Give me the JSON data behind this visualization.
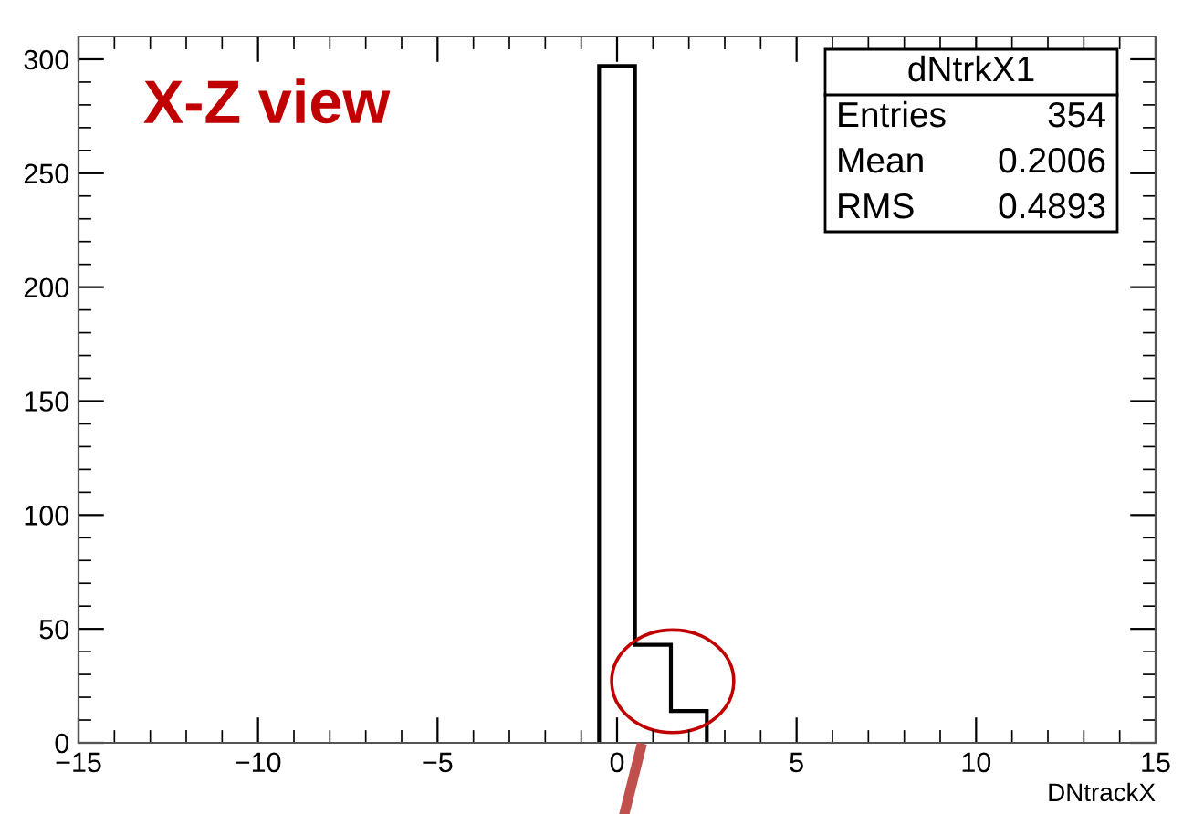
{
  "chart_data": {
    "type": "histogram",
    "xlabel": "DNtrackX",
    "bins": [
      -0.5,
      0.5,
      1.5,
      2.5
    ],
    "values": [
      297,
      43,
      14
    ],
    "color": "#000000",
    "xlim": [
      -15,
      15
    ],
    "xticks": [
      {
        "value": -15,
        "label": "−15"
      },
      {
        "value": -10,
        "label": "−10"
      },
      {
        "value": -5,
        "label": "−5"
      },
      0,
      5,
      10,
      15
    ],
    "ylim": [
      0,
      310
    ],
    "yticks": [
      0,
      50,
      100,
      150,
      200,
      250,
      300
    ],
    "annotations": [
      "X-Z view",
      "dNtrkX1",
      "Entries",
      "354",
      "Mean",
      "0.2006",
      "RMS",
      "0.4893"
    ],
    "grid": false,
    "legend": false
  }
}
